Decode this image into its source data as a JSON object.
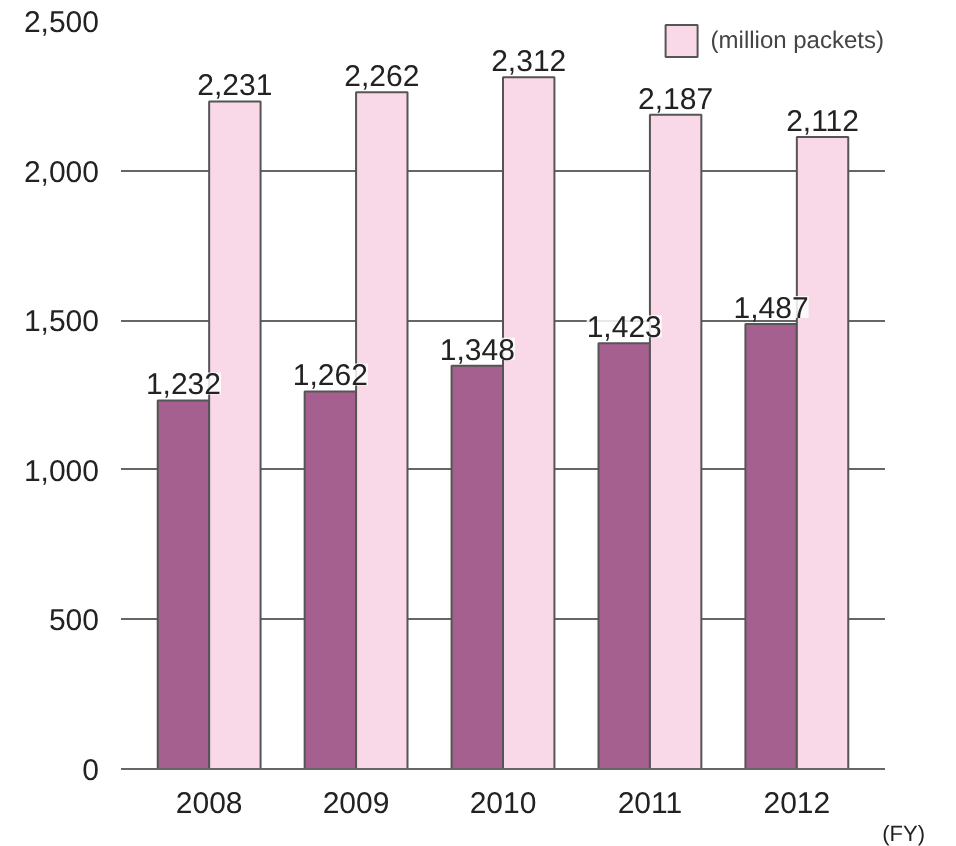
{
  "chart_data": {
    "type": "bar",
    "categories": [
      "2008",
      "2009",
      "2010",
      "2011",
      "2012"
    ],
    "series": [
      {
        "color": "#a5608f",
        "values": [
          1232,
          1262,
          1348,
          1423,
          1487
        ],
        "value_labels": [
          "1,232",
          "1,262",
          "1,348",
          "1,423",
          "1,487"
        ]
      },
      {
        "name": "(million packets)",
        "color": "#f9d9e8",
        "values": [
          2231,
          2262,
          2312,
          2187,
          2112
        ],
        "value_labels": [
          "2,231",
          "2,262",
          "2,312",
          "2,187",
          "2,112"
        ]
      }
    ],
    "ylim": [
      0,
      2500
    ],
    "yticks": [
      {
        "value": 0,
        "label": "0"
      },
      {
        "value": 500,
        "label": "500"
      },
      {
        "value": 1000,
        "label": "1,000"
      },
      {
        "value": 1500,
        "label": "1,500"
      },
      {
        "value": 2000,
        "label": "2,000"
      },
      {
        "value": 2500,
        "label": "2,500"
      }
    ],
    "grid": "y",
    "legend": "top right",
    "annotations": [
      "(FY)"
    ]
  }
}
